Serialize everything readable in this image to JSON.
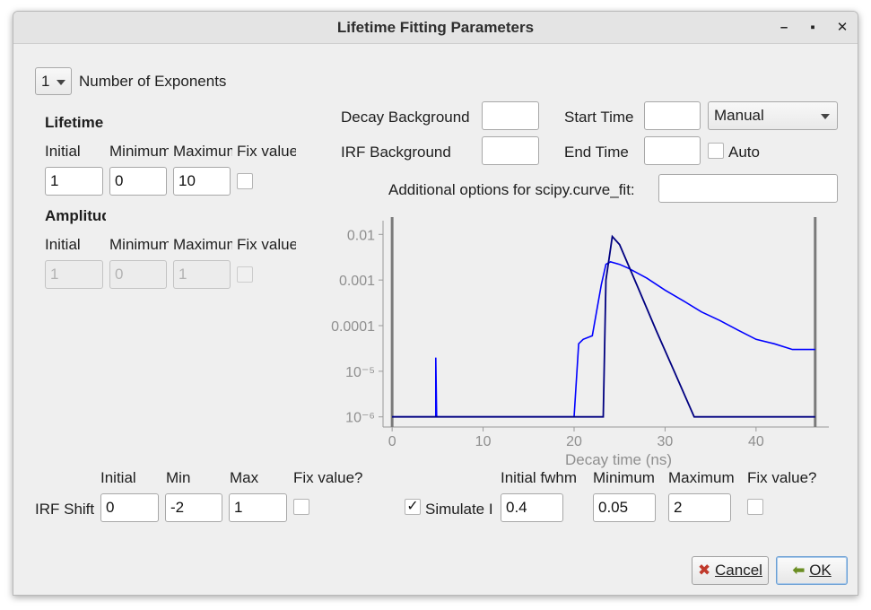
{
  "window": {
    "title": "Lifetime Fitting Parameters",
    "minimize": "–",
    "maximize": "▪",
    "close": "✕"
  },
  "exponents": {
    "value": "1",
    "label": "Number of Exponents"
  },
  "lifetime": {
    "heading": "Lifetime",
    "headers": [
      "Initial",
      "Minimum",
      "Maximum",
      "Fix value?"
    ],
    "initial": "1",
    "minimum": "0",
    "maximum": "10"
  },
  "amplitude": {
    "heading": "Amplitude",
    "headers": [
      "Initial",
      "Minimum",
      "Maximum",
      "Fix value?"
    ],
    "initial": "1",
    "minimum": "0",
    "maximum": "1"
  },
  "background": {
    "decay_label": "Decay Background",
    "decay_value": "",
    "irf_label": "IRF Background",
    "irf_value": ""
  },
  "time": {
    "start_label": "Start Time",
    "start_value": "",
    "end_label": "End Time",
    "end_value": "",
    "mode": "Manual",
    "auto_label": "Auto"
  },
  "options": {
    "label": "Additional options for scipy.curve_fit:",
    "value": ""
  },
  "chart_data": {
    "type": "line",
    "xlabel": "Decay time (ns)",
    "ylabel": "",
    "yscale": "log",
    "xlim": [
      -1,
      48
    ],
    "ylim": [
      6e-07,
      0.02
    ],
    "x_ticks": [
      "0",
      "10",
      "20",
      "30",
      "40"
    ],
    "x_tick_values": [
      0,
      10,
      20,
      30,
      40
    ],
    "y_ticks": [
      "0.01",
      "0.001",
      "0.0001",
      "10⁻⁵",
      "10⁻⁶"
    ],
    "y_tick_values": [
      0.01,
      0.001,
      0.0001,
      1e-05,
      1e-06
    ],
    "markers_x": [
      0,
      46.5
    ],
    "series": [
      {
        "color": "#0000ff",
        "x": [
          0,
          4.8,
          4.8,
          4.9,
          20,
          20.5,
          21,
          22,
          23,
          23.5,
          24,
          25,
          26,
          28,
          30,
          32,
          34,
          36,
          38,
          40,
          42,
          44,
          46.5
        ],
        "y": [
          1e-06,
          1e-06,
          2e-05,
          1e-06,
          1e-06,
          4e-05,
          5e-05,
          6e-05,
          0.0008,
          0.0022,
          0.0025,
          0.0022,
          0.0018,
          0.0011,
          0.0006,
          0.00035,
          0.0002,
          0.00013,
          8e-05,
          5e-05,
          4e-05,
          3e-05,
          3e-05
        ]
      },
      {
        "color": "#000080",
        "x": [
          0,
          23.2,
          23.5,
          24.2,
          25,
          27,
          29,
          31,
          33.2,
          46.5
        ],
        "y": [
          1e-06,
          1e-06,
          0.001,
          0.009,
          0.006,
          0.0007,
          8e-05,
          1e-05,
          1e-06,
          1e-06
        ]
      }
    ]
  },
  "irf_shift": {
    "label": "IRF Shift",
    "headers": [
      "Initial",
      "Min",
      "Max",
      "Fix value?"
    ],
    "initial": "0",
    "min": "-2",
    "max": "1"
  },
  "simulate": {
    "label": "Simulate IRF",
    "checked": "✓",
    "headers": [
      "Initial fwhm",
      "Minimum",
      "Maximum",
      "Fix value?"
    ],
    "initial": "0.4",
    "minimum": "0.05",
    "maximum": "2"
  },
  "buttons": {
    "cancel": "Cancel",
    "ok": "OK"
  }
}
